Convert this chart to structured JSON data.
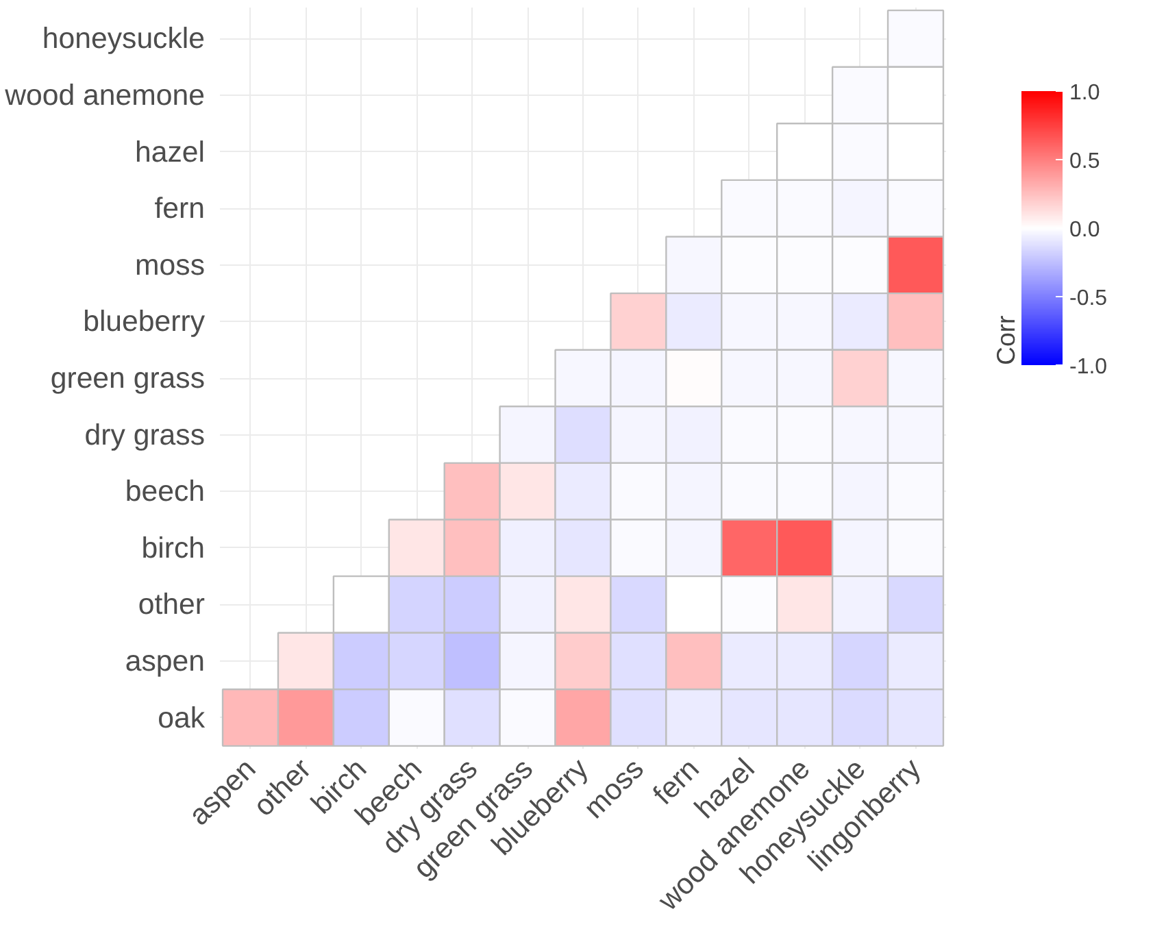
{
  "chart_data": {
    "type": "heatmap",
    "clabel": "Corr",
    "grid": true,
    "clim": [
      -1.0,
      1.0
    ],
    "cticks": [
      {
        "value": -1,
        "label": "-1.0"
      },
      {
        "value": -0.5,
        "label": "-0.5"
      },
      {
        "value": 0,
        "label": "0.0"
      },
      {
        "value": 0.5,
        "label": "0.5"
      },
      {
        "value": 1,
        "label": "1.0"
      }
    ],
    "categories": [
      "aspen",
      "other",
      "birch",
      "beech",
      "dry grass",
      "green grass",
      "blueberry",
      "moss",
      "fern",
      "hazel",
      "wood anemone",
      "honeysuckle",
      "lingonberry"
    ],
    "y_categories": [
      "honeysuckle",
      "wood anemone",
      "hazel",
      "fern",
      "moss",
      "blueberry",
      "green grass",
      "dry grass",
      "beech",
      "birch",
      "other",
      "aspen",
      "oak"
    ],
    "cells": [
      [
        null,
        null,
        null,
        null,
        null,
        null,
        null,
        null,
        null,
        null,
        null,
        null,
        -0.02
      ],
      [
        null,
        null,
        null,
        null,
        null,
        null,
        null,
        null,
        null,
        null,
        null,
        -0.02,
        0.0
      ],
      [
        null,
        null,
        null,
        null,
        null,
        null,
        null,
        null,
        null,
        null,
        0.0,
        -0.02,
        0.0
      ],
      [
        null,
        null,
        null,
        null,
        null,
        null,
        null,
        null,
        null,
        -0.02,
        -0.02,
        -0.04,
        -0.02
      ],
      [
        null,
        null,
        null,
        null,
        null,
        null,
        null,
        null,
        -0.03,
        -0.01,
        -0.01,
        -0.01,
        0.65
      ],
      [
        null,
        null,
        null,
        null,
        null,
        null,
        null,
        0.18,
        -0.08,
        -0.03,
        -0.03,
        -0.08,
        0.25
      ],
      [
        null,
        null,
        null,
        null,
        null,
        null,
        -0.03,
        -0.04,
        0.01,
        -0.03,
        -0.03,
        0.18,
        -0.03
      ],
      [
        null,
        null,
        null,
        null,
        null,
        -0.04,
        -0.13,
        -0.04,
        -0.05,
        -0.02,
        -0.02,
        -0.03,
        -0.03
      ],
      [
        null,
        null,
        null,
        null,
        0.25,
        0.1,
        -0.08,
        -0.02,
        -0.04,
        -0.02,
        -0.02,
        -0.04,
        -0.02
      ],
      [
        null,
        null,
        null,
        0.1,
        0.25,
        -0.06,
        -0.1,
        -0.02,
        -0.04,
        0.6,
        0.65,
        -0.04,
        -0.02
      ],
      [
        null,
        null,
        0.0,
        -0.17,
        -0.2,
        -0.05,
        0.1,
        -0.15,
        0.0,
        -0.01,
        0.1,
        -0.05,
        -0.15
      ],
      [
        null,
        0.1,
        -0.2,
        -0.16,
        -0.25,
        -0.04,
        0.2,
        -0.12,
        0.25,
        -0.08,
        -0.08,
        -0.16,
        -0.08
      ],
      [
        0.28,
        0.4,
        -0.2,
        -0.02,
        -0.12,
        -0.02,
        0.35,
        -0.12,
        -0.08,
        -0.1,
        -0.1,
        -0.14,
        -0.1
      ]
    ]
  }
}
